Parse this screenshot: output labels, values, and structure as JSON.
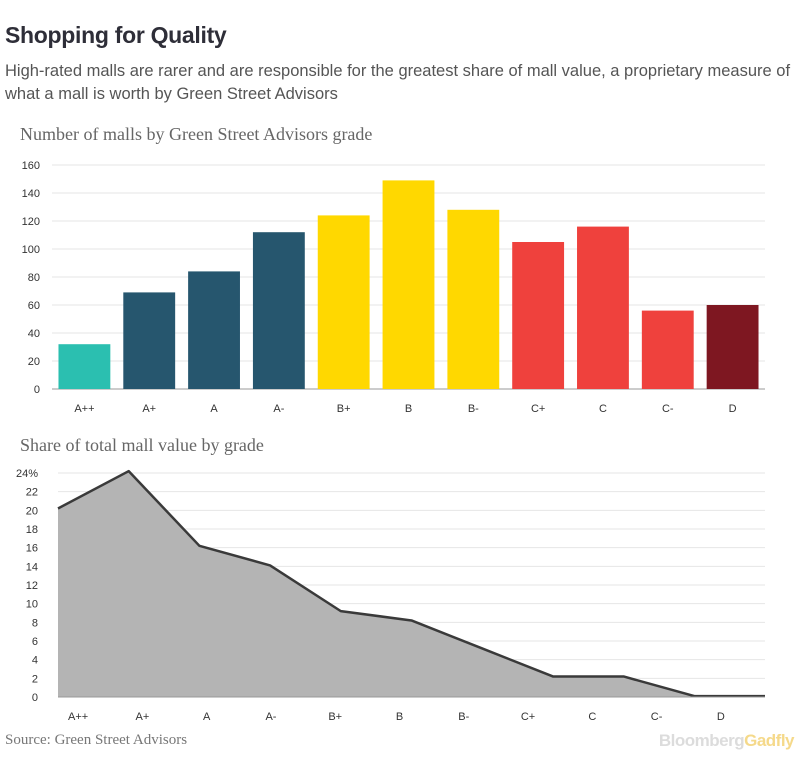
{
  "header": {
    "title": "Shopping for Quality",
    "subtitle": "High-rated malls are rarer and are responsible for the greatest share of mall value, a proprietary measure of what a mall is worth by Green Street Advisors"
  },
  "footer": {
    "source": "Source: Green Street Advisors",
    "brand_part1": "Bloomberg",
    "brand_part2": "Gadfly"
  },
  "chart_data": [
    {
      "type": "bar",
      "title": "Number of malls by Green Street Advisors grade",
      "categories": [
        "A++",
        "A+",
        "A",
        "A-",
        "B+",
        "B",
        "B-",
        "C+",
        "C",
        "C-",
        "D"
      ],
      "values": [
        32,
        69,
        84,
        112,
        124,
        149,
        128,
        105,
        116,
        56,
        60
      ],
      "colors": [
        "#2bbfb0",
        "#26566e",
        "#26566e",
        "#26566e",
        "#ffd800",
        "#ffd800",
        "#ffd800",
        "#ef413d",
        "#ef413d",
        "#ef413d",
        "#7e1721"
      ],
      "ylim": [
        0,
        160
      ],
      "yticks": [
        "0",
        "20",
        "40",
        "60",
        "80",
        "100",
        "120",
        "140",
        "160"
      ],
      "xlabel": "",
      "ylabel": "",
      "grid": true
    },
    {
      "type": "area",
      "title": "Share of total mall value by grade",
      "categories": [
        "A++",
        "A+",
        "A",
        "A-",
        "B+",
        "B",
        "B-",
        "C+",
        "C",
        "C-",
        "D"
      ],
      "values": [
        20.2,
        24.2,
        16.2,
        14.1,
        9.2,
        8.2,
        5.2,
        2.2,
        2.2,
        0.1,
        0.1
      ],
      "ylim": [
        0,
        24
      ],
      "yticks": [
        "0",
        "2",
        "4",
        "6",
        "8",
        "10",
        "12",
        "14",
        "16",
        "18",
        "20",
        "22",
        "24%"
      ],
      "fill_color": "#b4b4b4",
      "line_color": "#3a3a3a",
      "xlabel": "",
      "ylabel": "",
      "grid": true
    }
  ]
}
